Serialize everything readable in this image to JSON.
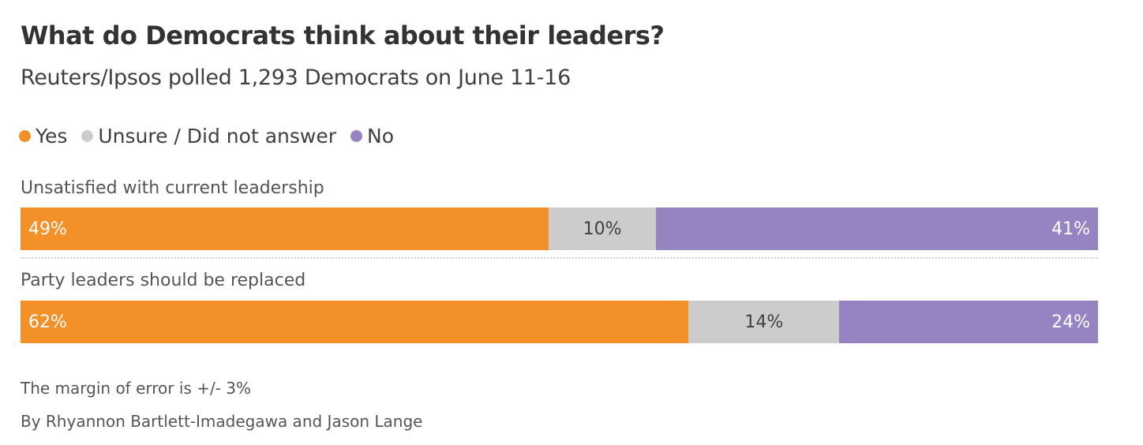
{
  "chart_data": {
    "type": "bar",
    "orientation": "horizontal-stacked-100",
    "title": "What do Democrats think about their leaders?",
    "subtitle": "Reuters/Ipsos polled 1,293 Democrats on June 11-16",
    "legend": [
      {
        "name": "Yes",
        "color": "#F39028"
      },
      {
        "name": "Unsure / Did not answer",
        "color": "#CCCCCC"
      },
      {
        "name": "No",
        "color": "#9683C1"
      }
    ],
    "categories": [
      "Unsatisfied with current leadership",
      "Party leaders should be replaced"
    ],
    "series": [
      {
        "name": "Yes",
        "values": [
          49,
          62
        ],
        "labels": [
          "49%",
          "62%"
        ]
      },
      {
        "name": "Unsure / Did not answer",
        "values": [
          10,
          14
        ],
        "labels": [
          "10%",
          "14%"
        ]
      },
      {
        "name": "No",
        "values": [
          41,
          24
        ],
        "labels": [
          "41%",
          "24%"
        ]
      }
    ],
    "notes": [
      "The margin of error is +/- 3%",
      "By Rhyannon Bartlett-Imadegawa and Jason Lange"
    ]
  }
}
